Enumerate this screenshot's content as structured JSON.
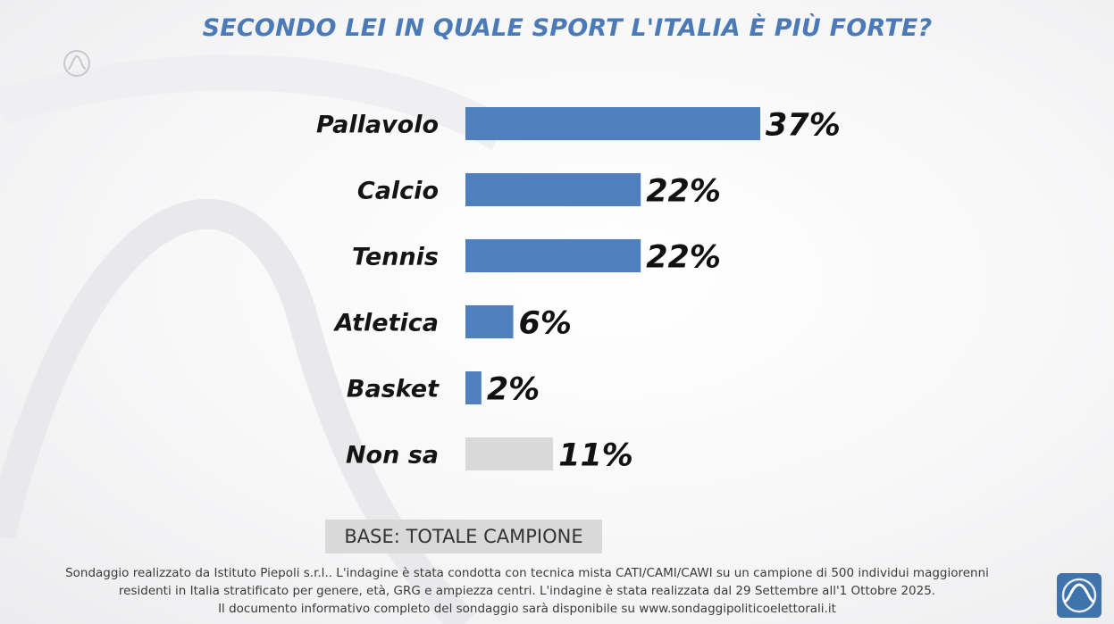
{
  "title": "SECONDO LEI IN QUALE SPORT L'ITALIA È PIÙ FORTE?",
  "base_label": "BASE: TOTALE CAMPIONE",
  "footnote": [
    "Sondaggio realizzato da Istituto Piepoli s.r.l.. L'indagine è stata condotta con tecnica mista CATI/CAMI/CAWI su un campione di 500 individui maggiorenni",
    "residenti in Italia stratificato per genere, età, GRG e ampiezza centri. L'indagine è stata realizzata dal 29 Settembre all'1 Ottobre 2025.",
    "Il documento informativo completo del sondaggio sarà disponibile su www.sondaggipoliticoelettorali.it"
  ],
  "icons": {
    "top": "institute-logo-icon",
    "corner": "piepoli-logo-icon"
  },
  "colors": {
    "title": "#4a7ab8",
    "bar": "#4f7fbd",
    "bar_neutral": "#d9d9d9",
    "logo": "#3f73ab"
  },
  "chart_data": {
    "type": "bar",
    "orientation": "horizontal",
    "title": "SECONDO LEI IN QUALE SPORT L'ITALIA È PIÙ FORTE?",
    "categories": [
      "Pallavolo",
      "Calcio",
      "Tennis",
      "Atletica",
      "Basket",
      "Non sa"
    ],
    "values": [
      37,
      22,
      22,
      6,
      2,
      11
    ],
    "value_labels": [
      "37%",
      "22%",
      "22%",
      "6%",
      "2%",
      "11%"
    ],
    "unit": "%",
    "bar_colors": [
      "#4f7fbd",
      "#4f7fbd",
      "#4f7fbd",
      "#4f7fbd",
      "#4f7fbd",
      "#d9d9d9"
    ],
    "xlim": [
      0,
      40
    ],
    "grid": false,
    "legend": "none"
  }
}
